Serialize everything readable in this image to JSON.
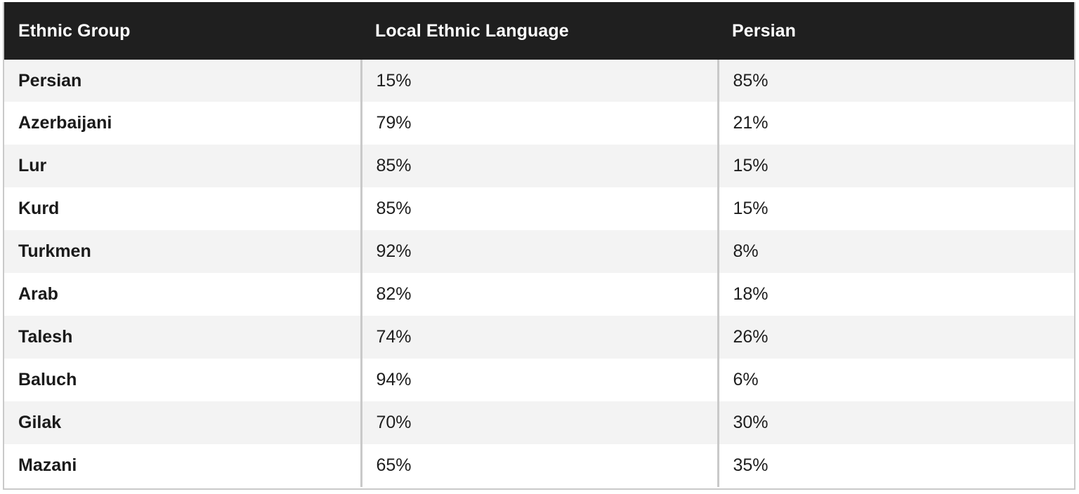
{
  "table": {
    "headers": [
      "Ethnic Group",
      "Local Ethnic Language",
      "Persian"
    ],
    "rows": [
      [
        "Persian",
        "15%",
        "85%"
      ],
      [
        "Azerbaijani",
        "79%",
        "21%"
      ],
      [
        "Lur",
        "85%",
        "15%"
      ],
      [
        "Kurd",
        "85%",
        "15%"
      ],
      [
        "Turkmen",
        "92%",
        "8%"
      ],
      [
        "Arab",
        "82%",
        "18%"
      ],
      [
        "Talesh",
        "74%",
        "26%"
      ],
      [
        "Baluch",
        "94%",
        "6%"
      ],
      [
        "Gilak",
        "70%",
        "30%"
      ],
      [
        "Mazani",
        "65%",
        "35%"
      ]
    ]
  }
}
